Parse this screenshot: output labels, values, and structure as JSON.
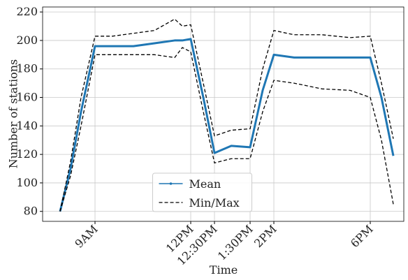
{
  "chart_data": {
    "type": "line",
    "xlabel": "Time",
    "ylabel": "Number of stations",
    "x": [
      25,
      40,
      55,
      75,
      100,
      130,
      160,
      189,
      200,
      212,
      230,
      246,
      270,
      297,
      315,
      331,
      360,
      400,
      440,
      469,
      485,
      502
    ],
    "series": [
      {
        "name": "Mean",
        "color": "#1f77b4",
        "values": [
          80,
          110,
          150,
          196,
          196,
          196,
          198,
          200,
          200,
          201,
          160,
          121,
          126,
          125,
          165,
          190,
          188,
          188,
          188,
          188,
          160,
          119
        ]
      },
      {
        "name": "Min/Max",
        "color": "#000000",
        "dashed": true,
        "lower": [
          80,
          105,
          140,
          190,
          190,
          190,
          190,
          188,
          195,
          192,
          150,
          114,
          117,
          117,
          150,
          172,
          170,
          166,
          165,
          160,
          130,
          85
        ],
        "upper": [
          80,
          115,
          160,
          203,
          203,
          205,
          207,
          215,
          210,
          211,
          170,
          133,
          137,
          138,
          180,
          207,
          204,
          204,
          202,
          203,
          170,
          131
        ]
      }
    ],
    "xlim": [
      0,
      517
    ],
    "xticks": [
      {
        "value": 75,
        "label": "9AM"
      },
      {
        "value": 212,
        "label": "12PM"
      },
      {
        "value": 246,
        "label": "12:30PM"
      },
      {
        "value": 297,
        "label": "1:30PM"
      },
      {
        "value": 331,
        "label": "2PM"
      },
      {
        "value": 469,
        "label": "6PM"
      }
    ],
    "ylim": [
      73,
      223.5
    ],
    "yticks": [
      80,
      100,
      120,
      140,
      160,
      180,
      200,
      220
    ],
    "grid": true,
    "legend": "lower center"
  }
}
